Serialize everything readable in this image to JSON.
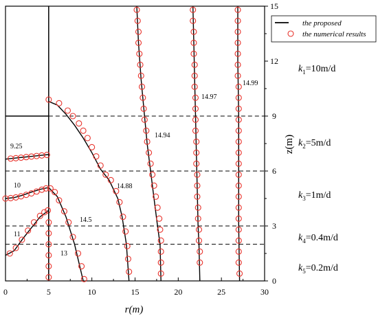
{
  "chart_data": {
    "type": "line",
    "xlabel": "r(m)",
    "ylabel": "z(m)",
    "xlim": [
      0,
      30
    ],
    "ylim": [
      0,
      15
    ],
    "x_ticks": [
      "0",
      "5",
      "10",
      "15",
      "20",
      "25",
      "30"
    ],
    "y_ticks": [
      "0",
      "3",
      "6",
      "9",
      "12",
      "15"
    ],
    "legend": {
      "placement": "top-right",
      "entries": [
        {
          "label": "the proposed",
          "marker": "line",
          "color": "#000000"
        },
        {
          "label": "the numerical results",
          "marker": "circle",
          "color": "#e8322b"
        }
      ]
    },
    "layer_boundaries_z": [
      2,
      3,
      6,
      9
    ],
    "well_boundary_r": 5,
    "well_top_z": 9,
    "layers": [
      {
        "name": "k",
        "sub": "1",
        "value": "=10m/d"
      },
      {
        "name": "k",
        "sub": "2",
        "value": "=5m/d"
      },
      {
        "name": "k",
        "sub": "3",
        "value": "=1m/d"
      },
      {
        "name": "k",
        "sub": "4",
        "value": "=0.4m/d"
      },
      {
        "name": "k",
        "sub": "5",
        "value": "=0.2m/d"
      }
    ],
    "contour_labels": [
      "9.25",
      "10",
      "11",
      "13",
      "14.5",
      "14.88",
      "14.94",
      "14.97",
      "14.99"
    ],
    "series": [
      {
        "head": "9.25",
        "points": [
          [
            0,
            6.65
          ],
          [
            1,
            6.7
          ],
          [
            2,
            6.75
          ],
          [
            3,
            6.8
          ],
          [
            4,
            6.85
          ],
          [
            5,
            6.9
          ]
        ],
        "numerical": [
          [
            0.6,
            6.68
          ],
          [
            1.2,
            6.7
          ],
          [
            1.8,
            6.73
          ],
          [
            2.4,
            6.76
          ],
          [
            3,
            6.79
          ],
          [
            3.6,
            6.82
          ],
          [
            4.2,
            6.85
          ],
          [
            4.8,
            6.88
          ]
        ]
      },
      {
        "head": "10",
        "points": [
          [
            0,
            4.5
          ],
          [
            1,
            4.55
          ],
          [
            2,
            4.68
          ],
          [
            3,
            4.85
          ],
          [
            4,
            5.0
          ],
          [
            5,
            5.1
          ],
          [
            6,
            4.6
          ],
          [
            7,
            3.5
          ],
          [
            8,
            2.0
          ],
          [
            9,
            0
          ]
        ],
        "numerical": [
          [
            0,
            4.5
          ],
          [
            0.6,
            4.52
          ],
          [
            1.2,
            4.56
          ],
          [
            1.8,
            4.62
          ],
          [
            2.4,
            4.7
          ],
          [
            3,
            4.78
          ],
          [
            3.6,
            4.88
          ],
          [
            4.2,
            4.98
          ],
          [
            4.7,
            5.05
          ],
          [
            5.2,
            5.05
          ],
          [
            5.7,
            4.85
          ],
          [
            6.2,
            4.4
          ],
          [
            6.8,
            3.8
          ],
          [
            7.3,
            3.2
          ],
          [
            7.8,
            2.4
          ],
          [
            8.4,
            1.5
          ],
          [
            8.8,
            0.8
          ],
          [
            9.1,
            0.1
          ]
        ]
      },
      {
        "head": "11",
        "points": [
          [
            0,
            1.4
          ],
          [
            1,
            1.65
          ],
          [
            2,
            2.3
          ],
          [
            3,
            2.9
          ],
          [
            4,
            3.5
          ],
          [
            5,
            3.85
          ]
        ],
        "numerical": [
          [
            0.5,
            1.5
          ],
          [
            1.2,
            1.8
          ],
          [
            1.9,
            2.25
          ],
          [
            2.6,
            2.75
          ],
          [
            3.3,
            3.2
          ],
          [
            4,
            3.55
          ],
          [
            4.5,
            3.75
          ],
          [
            4.9,
            3.85
          ]
        ]
      },
      {
        "head": "13",
        "points": [
          [
            5,
            0
          ],
          [
            5,
            0.8
          ],
          [
            5,
            1.6
          ],
          [
            5,
            2.4
          ],
          [
            5,
            3.2
          ],
          [
            5,
            3.9
          ]
        ],
        "numerical": [
          [
            5,
            0.2
          ],
          [
            5,
            0.8
          ],
          [
            5,
            1.4
          ],
          [
            5,
            2.0
          ],
          [
            5,
            2.6
          ],
          [
            5,
            3.2
          ]
        ]
      },
      {
        "head": "14.88",
        "points": [
          [
            5,
            9.8
          ],
          [
            6,
            9.6
          ],
          [
            7,
            9.1
          ],
          [
            8,
            8.5
          ],
          [
            9,
            7.8
          ],
          [
            10,
            7.0
          ],
          [
            11,
            6.1
          ],
          [
            12,
            5.5
          ],
          [
            13,
            4.5
          ],
          [
            13.5,
            3.5
          ],
          [
            14,
            2.0
          ],
          [
            14.3,
            0
          ]
        ],
        "numerical": [
          [
            5,
            9.9
          ],
          [
            6.2,
            9.7
          ],
          [
            7.2,
            9.3
          ],
          [
            7.8,
            9.0
          ],
          [
            8.5,
            8.6
          ],
          [
            9,
            8.2
          ],
          [
            9.5,
            7.8
          ],
          [
            10,
            7.3
          ],
          [
            10.5,
            6.8
          ],
          [
            11,
            6.3
          ],
          [
            11.6,
            5.8
          ],
          [
            12.2,
            5.5
          ],
          [
            12.8,
            4.9
          ],
          [
            13.2,
            4.3
          ],
          [
            13.6,
            3.5
          ],
          [
            13.9,
            2.7
          ],
          [
            14.1,
            1.9
          ],
          [
            14.2,
            1.2
          ],
          [
            14.3,
            0.5
          ]
        ]
      },
      {
        "head": "14.94",
        "points": [
          [
            15.2,
            15
          ],
          [
            15.4,
            13
          ],
          [
            15.7,
            11
          ],
          [
            16.1,
            9
          ],
          [
            16.4,
            7.5
          ],
          [
            16.8,
            6
          ],
          [
            17.2,
            4.5
          ],
          [
            17.6,
            3
          ],
          [
            17.9,
            2
          ],
          [
            18,
            0
          ]
        ],
        "numerical": [
          [
            15.2,
            14.8
          ],
          [
            15.3,
            14.2
          ],
          [
            15.4,
            13.6
          ],
          [
            15.4,
            13.0
          ],
          [
            15.5,
            12.4
          ],
          [
            15.6,
            11.8
          ],
          [
            15.7,
            11.2
          ],
          [
            15.8,
            10.6
          ],
          [
            15.9,
            10.0
          ],
          [
            16.0,
            9.4
          ],
          [
            16.1,
            8.8
          ],
          [
            16.3,
            8.2
          ],
          [
            16.4,
            7.6
          ],
          [
            16.6,
            7.0
          ],
          [
            16.8,
            6.4
          ],
          [
            17.0,
            5.8
          ],
          [
            17.2,
            5.2
          ],
          [
            17.4,
            4.6
          ],
          [
            17.6,
            4.0
          ],
          [
            17.8,
            3.4
          ],
          [
            17.9,
            2.8
          ],
          [
            18.0,
            2.2
          ],
          [
            18.0,
            1.6
          ],
          [
            18.0,
            1.0
          ],
          [
            18.0,
            0.4
          ]
        ]
      },
      {
        "head": "14.97",
        "points": [
          [
            21.7,
            15
          ],
          [
            21.8,
            13
          ],
          [
            21.9,
            11
          ],
          [
            22.0,
            9
          ],
          [
            22.1,
            7
          ],
          [
            22.2,
            5
          ],
          [
            22.3,
            3
          ],
          [
            22.4,
            2
          ],
          [
            22.5,
            0
          ]
        ],
        "numerical": [
          [
            21.7,
            14.8
          ],
          [
            21.7,
            14.2
          ],
          [
            21.8,
            13.6
          ],
          [
            21.8,
            13.0
          ],
          [
            21.8,
            12.4
          ],
          [
            21.9,
            11.8
          ],
          [
            21.9,
            11.2
          ],
          [
            21.9,
            10.6
          ],
          [
            22.0,
            10.0
          ],
          [
            22.0,
            9.4
          ],
          [
            22.0,
            8.8
          ],
          [
            22.0,
            8.2
          ],
          [
            22.1,
            7.6
          ],
          [
            22.1,
            7.0
          ],
          [
            22.1,
            6.4
          ],
          [
            22.2,
            5.8
          ],
          [
            22.2,
            5.2
          ],
          [
            22.2,
            4.6
          ],
          [
            22.3,
            4.0
          ],
          [
            22.3,
            3.4
          ],
          [
            22.4,
            2.8
          ],
          [
            22.4,
            2.2
          ],
          [
            22.5,
            1.6
          ],
          [
            22.5,
            1.0
          ]
        ]
      },
      {
        "head": "14.99",
        "points": [
          [
            26.9,
            15
          ],
          [
            26.9,
            12
          ],
          [
            27.0,
            9
          ],
          [
            27.0,
            6
          ],
          [
            27.0,
            3
          ],
          [
            27.1,
            0
          ]
        ],
        "numerical": [
          [
            26.9,
            14.8
          ],
          [
            26.9,
            14.2
          ],
          [
            26.9,
            13.6
          ],
          [
            26.9,
            13.0
          ],
          [
            26.9,
            12.4
          ],
          [
            26.9,
            11.8
          ],
          [
            26.9,
            11.2
          ],
          [
            27.0,
            10.6
          ],
          [
            27.0,
            10.0
          ],
          [
            27.0,
            9.4
          ],
          [
            27.0,
            8.8
          ],
          [
            27.0,
            8.2
          ],
          [
            27.0,
            7.6
          ],
          [
            27.0,
            7.0
          ],
          [
            27.0,
            6.4
          ],
          [
            27.0,
            5.8
          ],
          [
            27.0,
            5.2
          ],
          [
            27.0,
            4.6
          ],
          [
            27.0,
            4.0
          ],
          [
            27.0,
            3.4
          ],
          [
            27.0,
            2.8
          ],
          [
            27.0,
            2.2
          ],
          [
            27.0,
            1.6
          ],
          [
            27.0,
            1.0
          ],
          [
            27.1,
            0.4
          ]
        ]
      }
    ]
  }
}
